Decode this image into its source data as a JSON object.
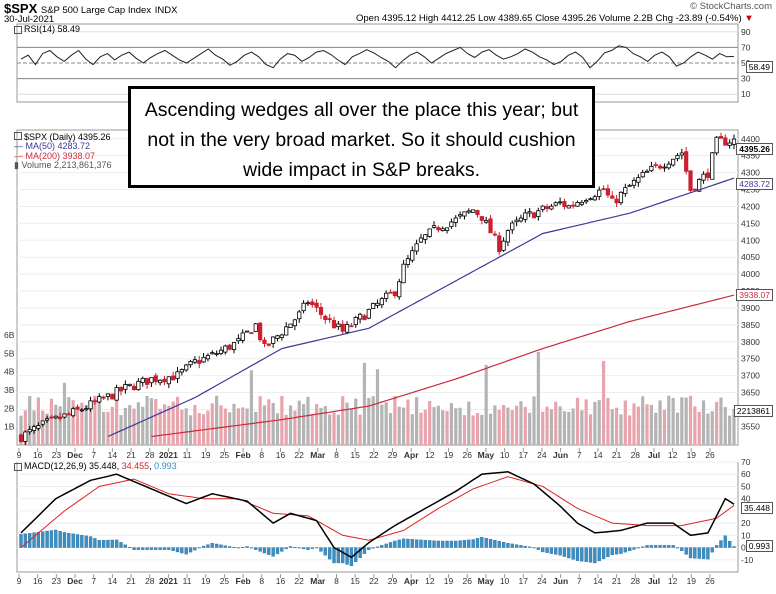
{
  "header": {
    "symbol": "$SPX",
    "name": "S&P 500 Large Cap Index",
    "exchange": "INDX",
    "date": "30-Jul-2021",
    "brand": "© StockCharts.com",
    "open_label": "Open",
    "open": "4395.12",
    "high_label": "High",
    "high": "4412.25",
    "low_label": "Low",
    "low": "4389.65",
    "close_label": "Close",
    "close": "4395.26",
    "volume_label": "Volume",
    "volume": "2.2B",
    "chg_label": "Chg",
    "chg": "-23.89 (-0.54%)"
  },
  "rsi": {
    "label": "RSI(14) 58.49",
    "value_flag": "58.49"
  },
  "legend": {
    "price": "$SPX (Daily) 4395.26",
    "ma50": "MA(50) 4283.72",
    "ma200": "MA(200) 3938.07",
    "volume": "Volume 2,213,861,376"
  },
  "flags": {
    "close": "4395.26",
    "ma50": "4283.72",
    "ma200": "3938.07",
    "volume": "2213861",
    "macd": "35.448",
    "hist": "0.993"
  },
  "macd": {
    "label": "MACD(12,26,9)",
    "v1": "35.448",
    "v2": "34.455",
    "v3": "0.993"
  },
  "annotation": "Ascending wedges all over the place this year; but not in the very broad market. So it should cushion wide impact in S&P breaks.",
  "colors": {
    "up": "#000000",
    "down": "#cc1f2f",
    "ma50": "#3a3a9a",
    "ma200": "#cc2b3a",
    "macd": "#000000",
    "signal": "#dd2222",
    "hist": "#3b8fc4",
    "vol_up": "#b4b4b4",
    "vol_down": "#e8a4ac"
  },
  "chart_data": [
    {
      "type": "line",
      "title": "RSI(14)",
      "y_ticks": [
        10,
        30,
        50,
        70,
        90
      ],
      "ylim": [
        0,
        100
      ],
      "x_points": 165,
      "values_sampled": [
        55,
        60,
        48,
        62,
        66,
        58,
        52,
        60,
        66,
        55,
        48,
        58,
        62,
        54,
        60,
        64,
        56,
        50,
        57,
        62,
        66,
        60,
        54,
        50,
        56,
        62,
        68,
        60,
        55,
        47,
        52,
        60,
        64,
        58,
        48,
        44,
        55,
        62,
        60,
        52,
        57,
        64,
        66,
        61,
        54,
        48,
        58,
        62,
        67,
        63,
        57,
        52,
        44,
        53,
        60,
        64,
        58,
        50,
        56,
        62,
        66,
        70,
        62,
        57,
        64,
        67,
        60,
        55,
        58,
        62,
        68,
        64,
        58,
        54,
        48,
        52,
        60,
        64,
        57,
        44,
        52,
        63,
        66,
        72,
        70,
        62,
        58,
        52,
        60,
        64,
        58,
        46,
        50,
        58,
        64,
        60,
        55,
        62,
        58,
        58.49
      ]
    },
    {
      "type": "candlestick",
      "title": "$SPX (Daily)",
      "ylim": [
        3495,
        4420
      ],
      "y_ticks": [
        3550,
        3600,
        3650,
        3700,
        3750,
        3800,
        3850,
        3900,
        3950,
        4000,
        4050,
        4100,
        4150,
        4200,
        4250,
        4300,
        4350,
        4400
      ],
      "x_tick_labels": [
        "9",
        "16",
        "23",
        "Dec",
        "7",
        "14",
        "21",
        "28",
        "2021",
        "11",
        "19",
        "25",
        "Feb",
        "8",
        "16",
        "22",
        "Mar",
        "8",
        "15",
        "22",
        "29",
        "Apr",
        "12",
        "19",
        "26",
        "May",
        "10",
        "17",
        "24",
        "Jun",
        "7",
        "14",
        "21",
        "28",
        "Jul",
        "12",
        "19",
        "26"
      ],
      "path": [
        [
          0,
          3520
        ],
        [
          6,
          3560
        ],
        [
          12,
          3590
        ],
        [
          18,
          3625
        ],
        [
          24,
          3662
        ],
        [
          30,
          3690
        ],
        [
          36,
          3700
        ],
        [
          40,
          3740
        ],
        [
          44,
          3760
        ],
        [
          50,
          3800
        ],
        [
          54,
          3850
        ],
        [
          56,
          3780
        ],
        [
          60,
          3830
        ],
        [
          64,
          3880
        ],
        [
          66,
          3920
        ],
        [
          70,
          3870
        ],
        [
          74,
          3830
        ],
        [
          78,
          3870
        ],
        [
          82,
          3910
        ],
        [
          86,
          3950
        ],
        [
          88,
          4020
        ],
        [
          92,
          4100
        ],
        [
          96,
          4140
        ],
        [
          100,
          4160
        ],
        [
          104,
          4190
        ],
        [
          106,
          4170
        ],
        [
          110,
          4080
        ],
        [
          112,
          4130
        ],
        [
          116,
          4170
        ],
        [
          120,
          4190
        ],
        [
          124,
          4210
        ],
        [
          126,
          4200
        ],
        [
          130,
          4230
        ],
        [
          134,
          4250
        ],
        [
          136,
          4210
        ],
        [
          140,
          4260
        ],
        [
          144,
          4300
        ],
        [
          148,
          4330
        ],
        [
          152,
          4360
        ],
        [
          154,
          4250
        ],
        [
          158,
          4300
        ],
        [
          160,
          4390
        ],
        [
          164,
          4395.26
        ]
      ],
      "ma50_end": 4283.72,
      "ma200_end": 3938.07,
      "series": [
        {
          "name": "MA(50)",
          "values": [
            [
              20,
              3520
            ],
            [
              40,
              3635
            ],
            [
              60,
              3780
            ],
            [
              80,
              3840
            ],
            [
              100,
              3980
            ],
            [
              120,
              4120
            ],
            [
              140,
              4180
            ],
            [
              164,
              4283.72
            ]
          ]
        },
        {
          "name": "MA(200)",
          "values": [
            [
              30,
              3520
            ],
            [
              60,
              3570
            ],
            [
              80,
              3610
            ],
            [
              100,
              3690
            ],
            [
              120,
              3780
            ],
            [
              140,
              3860
            ],
            [
              164,
              3938.07
            ]
          ]
        }
      ]
    },
    {
      "type": "bar",
      "title": "Volume",
      "y_ticks": [
        "1B",
        "2B",
        "3B",
        "4B",
        "5B",
        "6B"
      ],
      "ylim": [
        0,
        6
      ],
      "unit": "B"
    },
    {
      "type": "line",
      "title": "MACD(12,26,9)",
      "ylim": [
        -20,
        70
      ],
      "y_ticks": [
        -10,
        0,
        10,
        20,
        30,
        40,
        50,
        60,
        70
      ],
      "x_tick_labels": [
        "9",
        "16",
        "23",
        "Dec",
        "7",
        "14",
        "21",
        "28",
        "2021",
        "11",
        "19",
        "25",
        "Feb",
        "8",
        "16",
        "22",
        "Mar",
        "8",
        "15",
        "22",
        "29",
        "Apr",
        "12",
        "19",
        "26",
        "May",
        "10",
        "17",
        "24",
        "Jun",
        "7",
        "14",
        "21",
        "28",
        "Jul",
        "12",
        "19",
        "26"
      ],
      "series": [
        {
          "name": "MACD",
          "values": [
            [
              0,
              12
            ],
            [
              8,
              40
            ],
            [
              16,
              55
            ],
            [
              22,
              60
            ],
            [
              30,
              48
            ],
            [
              38,
              36
            ],
            [
              44,
              44
            ],
            [
              52,
              38
            ],
            [
              58,
              20
            ],
            [
              62,
              28
            ],
            [
              68,
              22
            ],
            [
              72,
              0
            ],
            [
              76,
              -8
            ],
            [
              80,
              4
            ],
            [
              86,
              18
            ],
            [
              92,
              30
            ],
            [
              100,
              46
            ],
            [
              106,
              60
            ],
            [
              112,
              62
            ],
            [
              118,
              52
            ],
            [
              124,
              34
            ],
            [
              128,
              20
            ],
            [
              132,
              12
            ],
            [
              138,
              14
            ],
            [
              144,
              20
            ],
            [
              150,
              20
            ],
            [
              154,
              10
            ],
            [
              158,
              12
            ],
            [
              162,
              40
            ],
            [
              164,
              35.448
            ]
          ]
        },
        {
          "name": "Signal",
          "values": [
            [
              0,
              0
            ],
            [
              10,
              30
            ],
            [
              18,
              50
            ],
            [
              26,
              56
            ],
            [
              34,
              44
            ],
            [
              42,
              40
            ],
            [
              50,
              40
            ],
            [
              58,
              28
            ],
            [
              66,
              26
            ],
            [
              74,
              10
            ],
            [
              80,
              6
            ],
            [
              88,
              14
            ],
            [
              96,
              32
            ],
            [
              104,
              48
            ],
            [
              112,
              58
            ],
            [
              120,
              50
            ],
            [
              128,
              32
            ],
            [
              136,
              20
            ],
            [
              144,
              18
            ],
            [
              152,
              18
            ],
            [
              160,
              24
            ],
            [
              164,
              34.455
            ]
          ]
        }
      ],
      "histogram_last": 0.993
    }
  ]
}
